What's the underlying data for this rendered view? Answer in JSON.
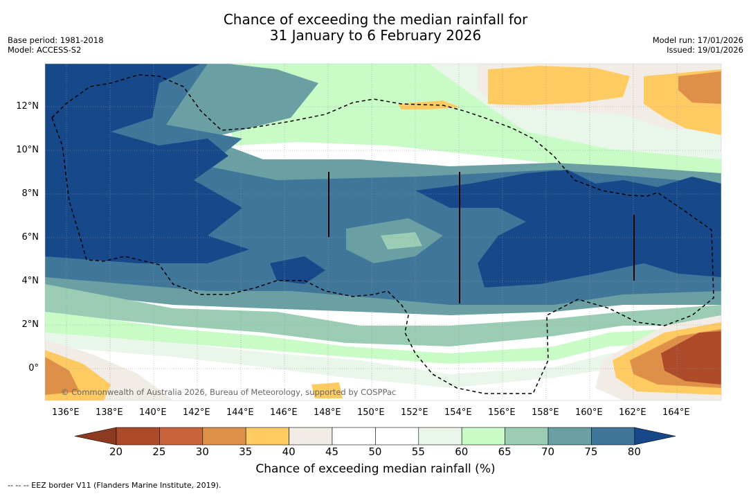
{
  "title": {
    "line1": "Chance of exceeding the median rainfall for",
    "line2": "31 January to 6 February 2026"
  },
  "meta": {
    "base_period": "Base period: 1981-2018",
    "model": "Model: ACCESS-S2",
    "model_run": "Model run: 17/01/2026",
    "issued": "Issued: 19/01/2026"
  },
  "map": {
    "lon_labels": [
      "136°E",
      "138°E",
      "140°E",
      "142°E",
      "144°E",
      "146°E",
      "148°E",
      "150°E",
      "152°E",
      "154°E",
      "156°E",
      "158°E",
      "160°E",
      "162°E",
      "164°E"
    ],
    "lat_labels": [
      "12°N",
      "10°N",
      "8°N",
      "6°N",
      "4°N",
      "2°N",
      "0°"
    ],
    "copyright": "© Commonwealth of Australia 2026, Bureau of Meteorology, supported by COSPPac"
  },
  "colorbar": {
    "ticks": [
      "20",
      "25",
      "30",
      "35",
      "40",
      "45",
      "50",
      "55",
      "60",
      "65",
      "70",
      "75",
      "80"
    ],
    "title": "Chance of exceeding median rainfall (%)",
    "colors": [
      "#8c3b20",
      "#ad4a2a",
      "#c9643a",
      "#de9048",
      "#fecb63",
      "#f1ece5",
      "#ffffff",
      "#ffffff",
      "#eaf6ea",
      "#c9fbc6",
      "#9acdb4",
      "#6a9fa4",
      "#3f7699",
      "#17498a"
    ]
  },
  "footer": {
    "legend": "--  --  -- EEZ border V11 (Flanders Marine Institute, 2019)."
  }
}
